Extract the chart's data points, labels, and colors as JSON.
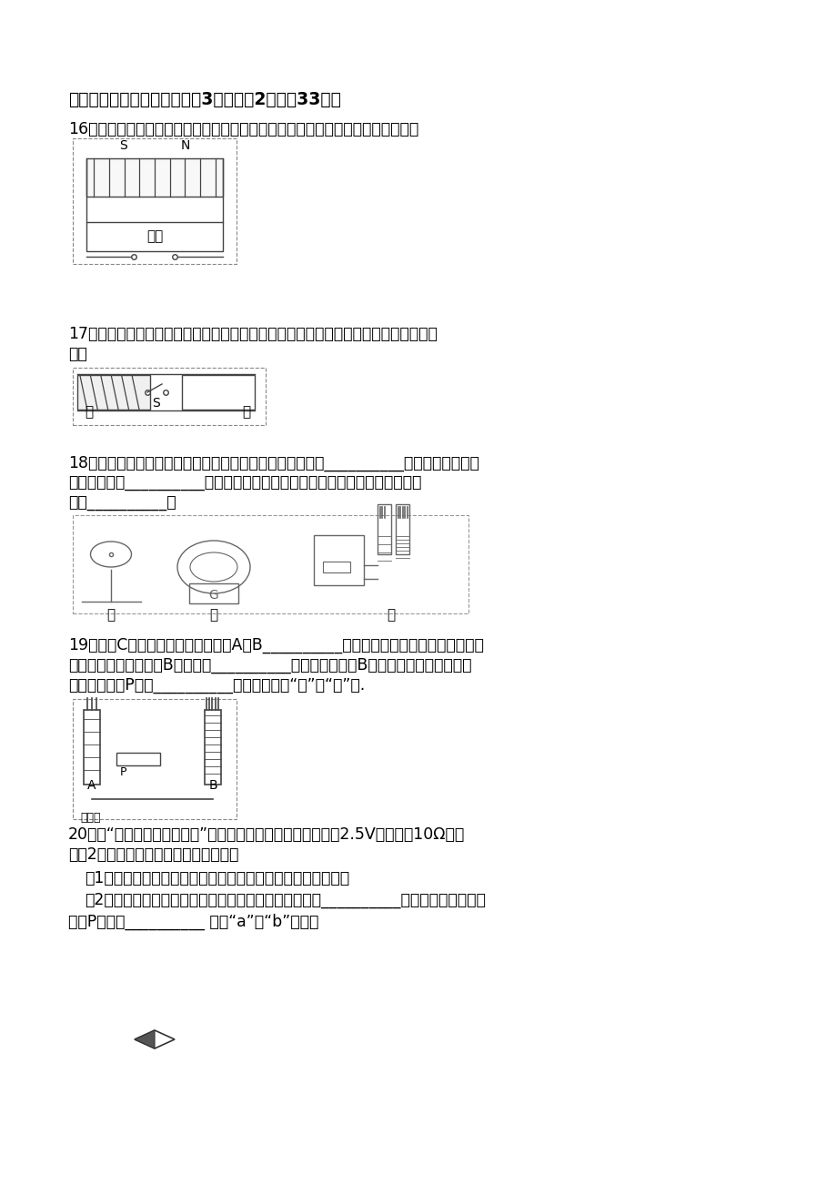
{
  "bg_color": "#ffffff",
  "text_color": "#000000",
  "font_size_title": 13.5,
  "font_size_body": 12.5,
  "title": "三、作图与实验探究题（每图3分，每空2分，全33分）",
  "q16_text": "16．请根据如图所示的小磁针指向，标出通电螺线管的南、北极，电源的正负极．",
  "q17_text1": "17．要求闭合开关后，图中甲、乙两个通电螺线管相互吸引，请画出乙螺线管线圈的绕",
  "q17_text2": "法．",
  "q18_text1": "18．小强在实验室做了如图中甲、乙、丙三个实验，其中图__________是研究电磁感应现",
  "q18_text2": "象的实验，图__________是研究电磁铁的实验．从图中的丙图可以得到的结论",
  "q18_text3": "是：__________．",
  "q19_text1": "19．实验C：通过观察和比较电磁铁A与B__________，可以得出电磁铁磁性的强弱与线",
  "q19_text2": "圈的匡数有关；电磁铁B的下端是__________极；要使电磁铁B吸引更多的大头针，滑动",
  "q19_text3": "变阵器的滑片P应向__________端移动（选填“左”或“右”）.",
  "q20_text1": "20．在“测量小灯泡的电功率”的实验中，小灯泡的额定电压为2.5V，电阵约10Ω，电",
  "q20_text2": "源为2节干电池，实验电路图如图所示．",
  "q20_text3": "（1）根据电路图，用笔画线代替导线将图中的电路连接完整．",
  "q20_text4": "（2）在根据电路图连接实验器材的过程中，开关应处于__________状态，滑动变阵器的",
  "q20_text5": "滑片P应移到__________ （填“a”或“b”）端．"
}
